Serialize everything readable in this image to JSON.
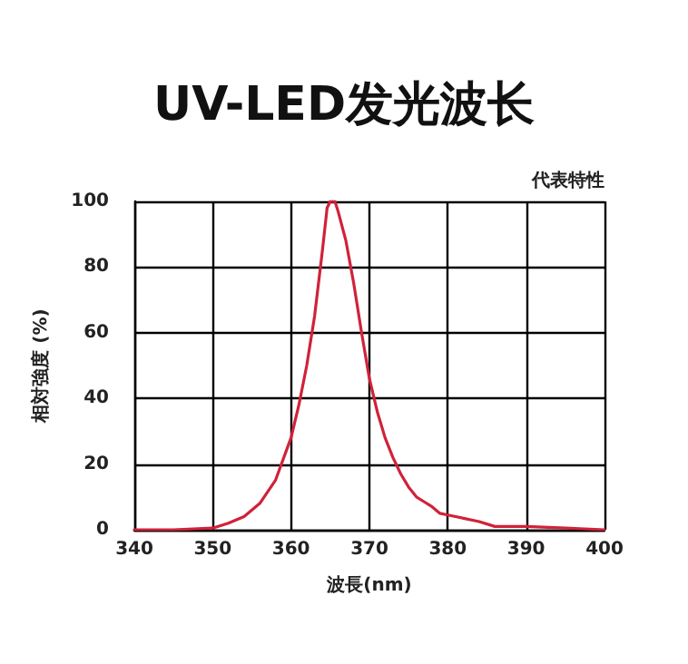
{
  "chart_data": {
    "type": "line",
    "title": "UV-LED发光波长",
    "annotations": [
      "代表特性"
    ],
    "xlabel": "波長(nm)",
    "ylabel": "相対強度 (%)",
    "x": [
      340,
      345,
      350,
      352,
      354,
      356,
      358,
      360,
      361,
      362,
      363,
      364,
      364.6,
      365,
      365.6,
      366,
      367,
      368,
      369,
      370,
      371,
      372,
      373,
      374,
      375,
      376,
      377,
      378,
      379,
      380,
      382,
      384,
      386,
      388,
      390,
      395,
      400
    ],
    "series": [
      {
        "color": "#d0223a",
        "values": [
          0,
          0,
          0.5,
          2,
          4,
          8,
          15,
          28,
          38,
          50,
          65,
          85,
          98,
          100,
          100,
          97,
          88,
          75,
          60,
          46,
          36,
          28,
          22,
          17,
          13,
          10,
          8.5,
          7,
          5,
          4.5,
          3.5,
          2.5,
          1,
          1,
          1,
          0.5,
          0
        ]
      }
    ],
    "xlim": [
      340,
      400
    ],
    "xticks": [
      340,
      350,
      360,
      370,
      380,
      390,
      400
    ],
    "ylim": [
      0,
      100
    ],
    "yticks": [
      0,
      20,
      40,
      60,
      80,
      100
    ],
    "grid": true,
    "marker": "none",
    "line_style": "solid"
  }
}
